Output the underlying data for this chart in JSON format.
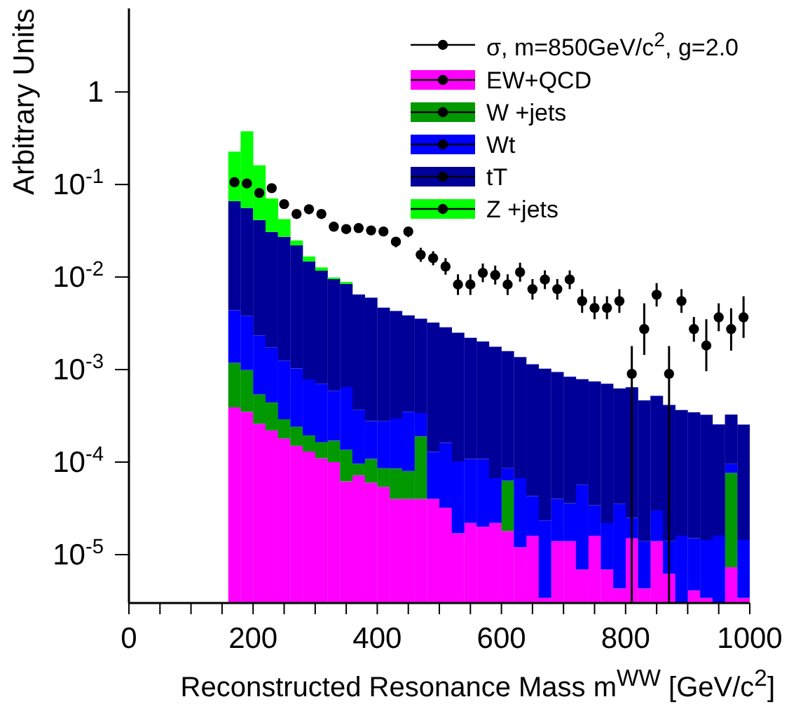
{
  "chart_data": {
    "type": "bar",
    "stacked": true,
    "log": "y",
    "legend": "top right",
    "ylabel": "Arbitrary Units",
    "xlabel": "Reconstructed Resonance Mass m$^{WW}$ [GeV/c$^{2}$]",
    "xlim": [
      0,
      1000
    ],
    "xticks": [
      0,
      {
        "value": 50,
        "label": null
      },
      {
        "value": 100,
        "label": null
      },
      {
        "value": 150,
        "label": null
      },
      200,
      {
        "value": 250,
        "label": null
      },
      {
        "value": 300,
        "label": null
      },
      {
        "value": 350,
        "label": null
      },
      400,
      {
        "value": 450,
        "label": null
      },
      {
        "value": 500,
        "label": null
      },
      {
        "value": 550,
        "label": null
      },
      600,
      {
        "value": 650,
        "label": null
      },
      {
        "value": 700,
        "label": null
      },
      {
        "value": 750,
        "label": null
      },
      800,
      {
        "value": 850,
        "label": null
      },
      {
        "value": 900,
        "label": null
      },
      {
        "value": 950,
        "label": null
      },
      1000
    ],
    "ylim": [
      3e-06,
      8
    ],
    "yticks": [
      {
        "value": 1e-05,
        "label": "10$^{-5}$"
      },
      {
        "value": 0.0001,
        "label": "10$^{-4}$"
      },
      {
        "value": 0.001,
        "label": "10$^{-3}$"
      },
      {
        "value": 0.01,
        "label": "10$^{-2}$"
      },
      {
        "value": 0.1,
        "label": "10$^{-1}$"
      },
      1
    ],
    "x": [
      170,
      190,
      210,
      230,
      250,
      270,
      290,
      310,
      330,
      350,
      370,
      390,
      410,
      430,
      450,
      470,
      490,
      510,
      530,
      550,
      570,
      590,
      610,
      630,
      650,
      670,
      690,
      710,
      730,
      750,
      770,
      790,
      810,
      830,
      850,
      870,
      890,
      910,
      930,
      950,
      970,
      990
    ],
    "series": [
      {
        "name": "σ, m=850GeV/c$^{2}$, g=2.0",
        "type": "scatter",
        "marker": "circle",
        "color": "#000000",
        "x": [
          170,
          190,
          210,
          230,
          250,
          270,
          290,
          310,
          330,
          350,
          370,
          390,
          410,
          430,
          450,
          470,
          490,
          510,
          530,
          550,
          570,
          590,
          610,
          630,
          650,
          670,
          690,
          710,
          730,
          750,
          770,
          790,
          810,
          830,
          850,
          870,
          890,
          910,
          930,
          950,
          970,
          990
        ],
        "values": [
          0.106,
          0.1026,
          0.0812,
          0.0912,
          0.0614,
          0.048,
          0.054,
          0.048,
          0.035,
          0.033,
          0.0338,
          0.0319,
          0.0311,
          0.0241,
          0.0311,
          0.0174,
          0.016,
          0.013,
          0.0083,
          0.0083,
          0.0111,
          0.0105,
          0.0083,
          0.0113,
          0.0074,
          0.0094,
          0.0074,
          0.0094,
          0.0055,
          0.00464,
          0.00464,
          0.0055,
          0.0009,
          0.00274,
          0.00644,
          0.0009,
          0.0055,
          0.00274,
          0.00182,
          0.00367,
          0.00274,
          0.00367
        ],
        "errors": [
          [
            0.097,
            0.117
          ],
          [
            0.093,
            0.113
          ],
          [
            0.074,
            0.089
          ],
          [
            0.083,
            0.1
          ],
          [
            0.056,
            0.067
          ],
          [
            0.044,
            0.053
          ],
          [
            0.049,
            0.059
          ],
          [
            0.044,
            0.053
          ],
          [
            0.032,
            0.038
          ],
          [
            0.03,
            0.036
          ],
          [
            0.031,
            0.037
          ],
          [
            0.029,
            0.035
          ],
          [
            0.028,
            0.034
          ],
          [
            0.021,
            0.027
          ],
          [
            0.027,
            0.035
          ],
          [
            0.0146,
            0.0207
          ],
          [
            0.0134,
            0.019
          ],
          [
            0.0106,
            0.016
          ],
          [
            0.0064,
            0.0107
          ],
          [
            0.0064,
            0.0107
          ],
          [
            0.0088,
            0.014
          ],
          [
            0.0083,
            0.0133
          ],
          [
            0.0064,
            0.0107
          ],
          [
            0.0089,
            0.0143
          ],
          [
            0.0057,
            0.0095
          ],
          [
            0.0074,
            0.0118
          ],
          [
            0.0057,
            0.0095
          ],
          [
            0.0074,
            0.0118
          ],
          [
            0.0041,
            0.0074
          ],
          [
            0.0035,
            0.0062
          ],
          [
            0.0035,
            0.0062
          ],
          [
            0.0041,
            0.0074
          ],
          [
            3e-06,
            0.0018
          ],
          [
            0.00144,
            0.0052
          ],
          [
            0.0048,
            0.0086
          ],
          [
            3e-06,
            0.0018
          ],
          [
            0.0041,
            0.0074
          ],
          [
            0.002,
            0.0037
          ],
          [
            0.00096,
            0.0035
          ],
          [
            0.0026,
            0.0052
          ],
          [
            0.0016,
            0.0046
          ],
          [
            0.0022,
            0.0062
          ]
        ]
      },
      {
        "name": "EW+QCD",
        "color": "#ff00ff",
        "values": [
          0.00039,
          0.00035,
          0.00026,
          0.00022,
          0.00018,
          0.00015,
          0.00013,
          0.00011,
          0.0001,
          6.2e-05,
          7.2e-05,
          6e-05,
          5.4e-05,
          4e-05,
          4e-05,
          4e-05,
          4e-05,
          3.2e-05,
          1.7e-05,
          2.2e-05,
          2e-05,
          2.2e-05,
          1.8e-05,
          1.2e-05,
          1.6e-05,
          3.4e-06,
          1.4e-05,
          1.4e-05,
          6.9e-06,
          1.6e-05,
          6.9e-06,
          4.3e-06,
          1.5e-05,
          4.3e-06,
          1.4e-05,
          6.2e-06,
          null,
          4.1e-06,
          3.4e-06,
          null,
          7.3e-06,
          3.4e-06
        ]
      },
      {
        "name": "W +jets",
        "color": "#009900",
        "values": [
          0.00079,
          0.00064,
          0.00028,
          0.00022,
          0.00011,
          9e-05,
          6.4e-05,
          5.4e-05,
          7e-05,
          7.4e-05,
          2.4e-05,
          4.8e-05,
          3.2e-05,
          4.5e-05,
          4e-05,
          0.00015,
          null,
          null,
          null,
          null,
          null,
          null,
          4.5e-05,
          null,
          null,
          null,
          null,
          null,
          null,
          null,
          null,
          null,
          null,
          null,
          null,
          null,
          null,
          null,
          null,
          null,
          6.9e-05,
          null
        ]
      },
      {
        "name": "Wt",
        "color": "#0000ff",
        "values": [
          0.0032,
          0.0028,
          0.0018,
          0.0013,
          0.00096,
          0.00079,
          0.00059,
          0.00054,
          0.00042,
          0.00051,
          0.00027,
          0.00017,
          0.00019,
          0.00021,
          0.00027,
          0.00015,
          8.9e-05,
          0.00013,
          8.5e-05,
          8.6e-05,
          8.8e-05,
          4.5e-05,
          2.3e-05,
          5.5e-05,
          2.7e-05,
          2e-05,
          2.6e-05,
          2.2e-05,
          5e-05,
          1.8e-05,
          1.5e-05,
          3.1e-05,
          1e-05,
          9.7e-06,
          1.6e-05,
          7.8e-06,
          1.6e-05,
          1.1e-05,
          1.1e-05,
          1.6e-05,
          2e-05,
          1.1e-05
        ]
      },
      {
        "name": "tT",
        "color": "#000099",
        "values": [
          0.062,
          0.052,
          0.039,
          0.029,
          0.026,
          0.021,
          0.014,
          0.011,
          0.0089,
          0.0078,
          0.0061,
          0.0057,
          0.0044,
          0.004,
          0.0035,
          0.0032,
          0.0031,
          0.0027,
          0.0024,
          0.0021,
          0.0019,
          0.0017,
          0.0015,
          0.0013,
          0.0011,
          0.001,
          0.0009,
          0.0008,
          0.00073,
          0.00071,
          0.00068,
          0.00059,
          0.00062,
          0.00045,
          0.00049,
          0.0004,
          0.00035,
          0.00033,
          0.00031,
          0.00024,
          0.00023,
          0.00024
        ]
      },
      {
        "name": "Z +jets",
        "color": "#00ff00",
        "values": [
          0.16,
          0.32,
          0.12,
          0.04,
          0.015,
          0.0028,
          0.0019,
          0.001,
          0.0004,
          0.0004,
          null,
          null,
          null,
          null,
          null,
          null,
          null,
          null,
          null,
          null,
          null,
          null,
          null,
          null,
          null,
          null,
          null,
          null,
          null,
          null,
          null,
          null,
          null,
          null,
          null,
          null,
          null,
          null,
          null,
          null,
          null,
          null
        ]
      }
    ]
  }
}
